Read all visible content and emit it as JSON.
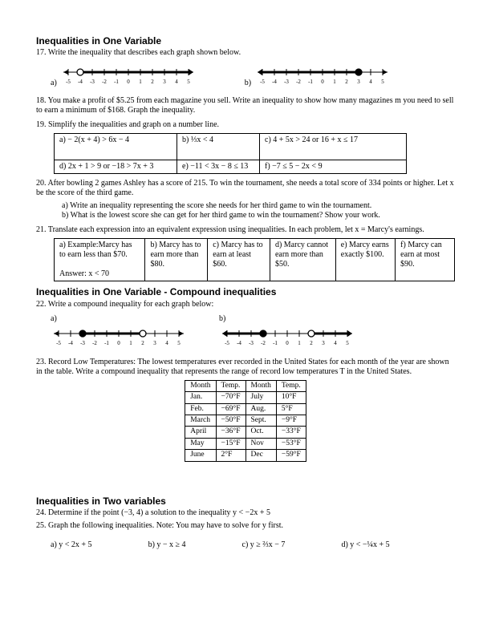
{
  "sec1": {
    "title": "Inequalities in One Variable",
    "q17": "17.  Write the inequality that describes each graph shown below.",
    "q17_a_label": "a)",
    "q17_b_label": "b)",
    "q18": "18.  You make a profit of $5.25 from each magazine you sell. Write an inequality to show how many magazines m you need to sell to earn a minimum of $168. Graph the inequality.",
    "q19": "19.  Simplify the inequalities and graph on a number line.",
    "cells": {
      "a": "a) − 2(x + 4) > 6x − 4",
      "b": "b) ⅓x < 4",
      "c": "c)   4 + 5x > 24  or  16 + x ≤ 17",
      "d": "d)  2x + 1 > 9   or   −18 > 7x + 3",
      "e": "e)   −11 < 3x − 8 ≤ 13",
      "f": "f)   −7 ≤ 5 − 2x < 9"
    },
    "q20": "20.  After bowling 2 games Ashley has a score of 215. To win the tournament, she needs a total score of 334 points or higher. Let x be the score of the third game.",
    "q20a": "a)  Write an inequality representing the score she needs for her third game to win the tournament.",
    "q20b": "b)  What is the lowest score she can get for her third game to win the tournament? Show your work.",
    "q21": "21.  Translate each expression into an equivalent expression using inequalities.  In each problem, let x = Marcy's earnings.",
    "t21": {
      "a": "a)  Example:Marcy has to earn less than $70.",
      "a_ans": "Answer:  x < 70",
      "b": "b)  Marcy has to earn more than $80.",
      "c": "c)  Marcy has to earn at least $60.",
      "d": "d)  Marcy cannot earn more than $50.",
      "e": "e)  Marcy earns exactly $100.",
      "f": "f)  Marcy can earn at most $90."
    }
  },
  "sec2": {
    "title": "Inequalities in One Variable - Compound inequalities",
    "q22": "22.  Write a compound inequality for each graph below:",
    "q22_a_label": "a)",
    "q22_b_label": "b)",
    "q23": "23.  Record Low Temperatures:  The lowest temperatures ever recorded in the United States for each month of the year are shown in the table. Write a compound inequality that represents the range of record low temperatures T in the United States.",
    "temps": {
      "headers": [
        "Month",
        "Temp.",
        "Month",
        "Temp."
      ],
      "rows": [
        [
          "Jan.",
          "−70°F",
          "July",
          "10°F"
        ],
        [
          "Feb.",
          "−69°F",
          "Aug.",
          "5°F"
        ],
        [
          "March",
          "−50°F",
          "Sept.",
          "−9°F"
        ],
        [
          "April",
          "−36°F",
          "Oct.",
          "−33°F"
        ],
        [
          "May",
          "−15°F",
          "Nov",
          "−53°F"
        ],
        [
          "June",
          "2°F",
          "Dec",
          "−59°F"
        ]
      ]
    }
  },
  "sec3": {
    "title": "Inequalities in Two variables",
    "q24": "24.  Determine if the point (−3, 4) a solution to the inequality   y < −2x + 5",
    "q25": "25.  Graph the following inequalities.  Note: You may have to solve for y first.",
    "parts": {
      "a": "a)  y < 2x + 5",
      "b": "b)  y − x ≥ 4",
      "c": "c)  y ≥ ⅔x − 7",
      "d": "d)  y < −¼x + 5"
    }
  },
  "numline": {
    "ticks": [
      -5,
      -4,
      -3,
      -2,
      -1,
      0,
      1,
      2,
      3,
      4,
      5
    ]
  }
}
